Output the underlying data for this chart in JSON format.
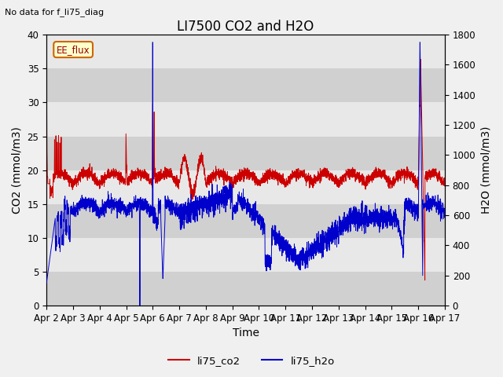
{
  "title": "LI7500 CO2 and H2O",
  "subtitle": "No data for f_li75_diag",
  "xlabel": "Time",
  "ylabel_left": "CO2 (mmol/m3)",
  "ylabel_right": "H2O (mmol/m3)",
  "ylim_left": [
    0,
    40
  ],
  "ylim_right": [
    0,
    1800
  ],
  "yticks_left": [
    0,
    5,
    10,
    15,
    20,
    25,
    30,
    35,
    40
  ],
  "yticks_right": [
    0,
    200,
    400,
    600,
    800,
    1000,
    1200,
    1400,
    1600,
    1800
  ],
  "xtick_labels": [
    "Apr 2",
    "Apr 3",
    "Apr 4",
    "Apr 5",
    "Apr 6",
    "Apr 7",
    "Apr 8",
    "Apr 9",
    "Apr 10",
    "Apr 11",
    "Apr 12",
    "Apr 13",
    "Apr 14",
    "Apr 15",
    "Apr 16",
    "Apr 17"
  ],
  "legend_labels": [
    "li75_co2",
    "li75_h2o"
  ],
  "legend_colors": [
    "#cc0000",
    "#0000cc"
  ],
  "annotation_label": "EE_flux",
  "plot_bg_color": "#e8e8e8",
  "fig_bg_color": "#f0f0f0",
  "band_color": "#d0d0d0",
  "co2_color": "#cc0000",
  "h2o_color": "#0000cc",
  "title_fontsize": 12,
  "axis_fontsize": 10,
  "tick_fontsize": 8.5,
  "subtitle_fontsize": 8
}
